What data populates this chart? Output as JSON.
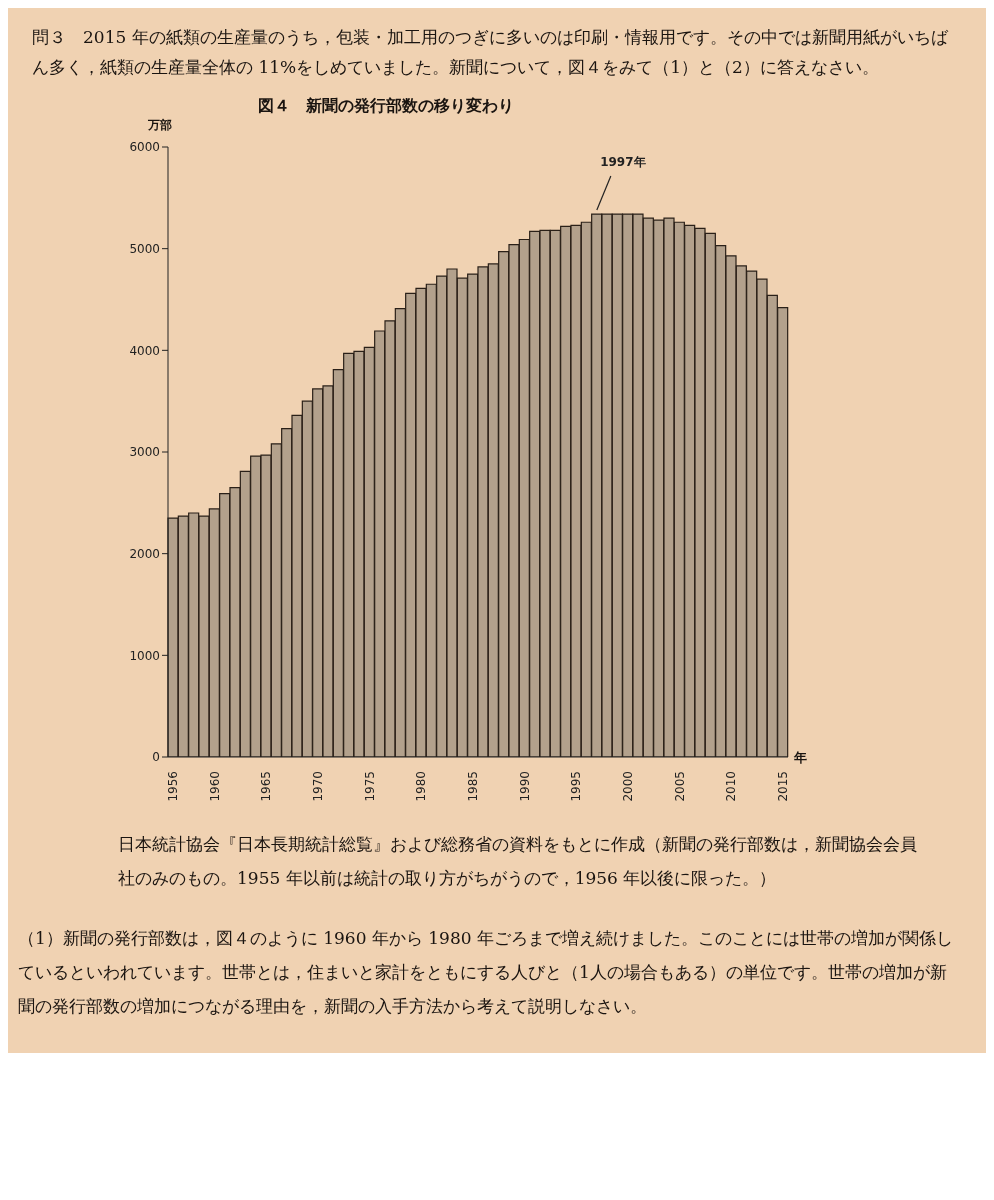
{
  "chart_data": {
    "type": "bar",
    "title": "図４　新聞の発行部数の移り変わり",
    "ylabel": "万部",
    "xlabel": "年",
    "annotations": [
      "問３　2015 年の紙類の生産量のうち，包装・加工用のつぎに多いのは印刷・情報用です。その中では新聞用紙がいちばん多く，紙類の生産量全体の 11%をしめていました。新聞について，図４をみて（1）と（2）に答えなさい。",
      "1997年",
      "日本統計協会『日本長期統計総覧』および総務省の資料をもとに作成（新聞の発行部数は，新聞協会会員社のみのもの。1955 年以前は統計の取り方がちがうので，1956 年以後に限った。）",
      "（1）新聞の発行部数は，図４のように 1960 年から 1980 年ごろまで増え続けました。このことには世帯の増加が関係しているといわれています。世帯とは，住まいと家計をともにする人びと（1人の場合もある）の単位です。世帯の増加が新聞の発行部数の増加につながる理由を，新聞の入手方法から考えて説明しなさい。"
    ],
    "categories": [
      "1956",
      null,
      null,
      null,
      "1960",
      null,
      null,
      null,
      null,
      "1965",
      null,
      null,
      null,
      null,
      "1970",
      null,
      null,
      null,
      null,
      "1975",
      null,
      null,
      null,
      null,
      "1980",
      null,
      null,
      null,
      null,
      "1985",
      null,
      null,
      null,
      null,
      "1990",
      null,
      null,
      null,
      null,
      "1995",
      null,
      null,
      null,
      null,
      "2000",
      null,
      null,
      null,
      null,
      "2005",
      null,
      null,
      null,
      null,
      "2010",
      null,
      null,
      null,
      null,
      "2015"
    ],
    "values": [
      2350,
      2370,
      2400,
      2370,
      2440,
      2590,
      2650,
      2810,
      2960,
      2970,
      3080,
      3230,
      3360,
      3500,
      3620,
      3650,
      3810,
      3970,
      3990,
      4030,
      4190,
      4290,
      4410,
      4560,
      4610,
      4650,
      4730,
      4800,
      4710,
      4750,
      4820,
      4850,
      4970,
      5040,
      5090,
      5170,
      5180,
      5180,
      5220,
      5230,
      5260,
      5340,
      5340,
      5340,
      5340,
      5340,
      5300,
      5280,
      5300,
      5260,
      5230,
      5200,
      5150,
      5030,
      4930,
      4830,
      4780,
      4700,
      4540,
      4420
    ],
    "color": "#b3a18c",
    "ylim": [
      0,
      6000
    ],
    "yticks": [
      0,
      1000,
      2000,
      3000,
      4000,
      5000,
      6000
    ],
    "grid": false
  }
}
